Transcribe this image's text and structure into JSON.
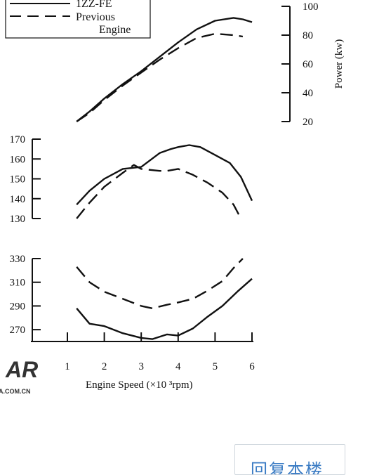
{
  "chart_data": {
    "type": "line",
    "x_axis": {
      "label": "Engine  Speed (×10 ³rpm)",
      "ticks": [
        1,
        2,
        3,
        4,
        5,
        6
      ],
      "range": [
        1,
        6
      ]
    },
    "legend": {
      "entries": [
        "1ZZ-FE",
        "Previous",
        "Engine"
      ],
      "placement": "top-left"
    },
    "panels": [
      {
        "id": "power",
        "ylabel": "Power (kw)",
        "y_axis_side": "right",
        "y_ticks": [
          20,
          40,
          60,
          80,
          100
        ],
        "ylim": [
          20,
          100
        ],
        "series": [
          {
            "name": "1ZZ-FE",
            "style": "solid",
            "x": [
              1.25,
              1.6,
              2,
              2.5,
              3,
              3.5,
              4,
              4.5,
              5,
              5.5,
              5.75,
              6
            ],
            "y": [
              20,
              27,
              36,
              46,
              55,
              65,
              75,
              84,
              90,
              92,
              91,
              89
            ]
          },
          {
            "name": "Previous Engine",
            "style": "dashed",
            "x": [
              1.25,
              1.6,
              2,
              2.5,
              3,
              3.5,
              4,
              4.5,
              5,
              5.5,
              5.75
            ],
            "y": [
              20,
              26,
              35,
              45,
              54,
              63,
              71,
              78,
              81,
              80,
              79
            ]
          }
        ]
      },
      {
        "id": "torque",
        "ylabel": "",
        "y_axis_side": "left",
        "y_ticks": [
          130,
          140,
          150,
          160,
          170
        ],
        "ylim": [
          130,
          170
        ],
        "series": [
          {
            "name": "1ZZ-FE",
            "style": "solid",
            "x": [
              1.25,
              1.6,
              2,
              2.5,
              3,
              3.5,
              3.8,
              4,
              4.3,
              4.6,
              5,
              5.4,
              5.7,
              6
            ],
            "y": [
              137,
              144,
              150,
              155,
              156,
              163,
              165,
              166,
              167,
              166,
              162,
              158,
              151,
              139
            ]
          },
          {
            "name": "Previous Engine",
            "style": "dashed",
            "x": [
              1.25,
              1.6,
              2,
              2.5,
              2.8,
              3,
              3.5,
              3.7,
              4,
              4.4,
              4.8,
              5.2,
              5.5,
              5.7
            ],
            "y": [
              130,
              138,
              146,
              153,
              157,
              155,
              154,
              154,
              155,
              152,
              148,
              143,
              137,
              130
            ]
          }
        ]
      },
      {
        "id": "bsfc",
        "ylabel": "",
        "y_axis_side": "left",
        "y_ticks": [
          270,
          290,
          310,
          330
        ],
        "ylim": [
          260,
          330
        ],
        "series": [
          {
            "name": "1ZZ-FE",
            "style": "solid",
            "x": [
              1.25,
              1.6,
              2,
              2.5,
              3,
              3.3,
              3.7,
              4,
              4.4,
              4.8,
              5.2,
              5.6,
              6
            ],
            "y": [
              288,
              275,
              273,
              267,
              263,
              262,
              266,
              265,
              271,
              281,
              290,
              302,
              313
            ]
          },
          {
            "name": "Previous Engine",
            "style": "dashed",
            "x": [
              1.25,
              1.6,
              2,
              2.5,
              3,
              3.3,
              3.7,
              4,
              4.4,
              4.8,
              5.2,
              5.5,
              5.75
            ],
            "y": [
              323,
              310,
              302,
              296,
              290,
              288,
              291,
              293,
              296,
              303,
              311,
              322,
              330
            ]
          }
        ]
      }
    ]
  },
  "watermark": {
    "logo_text": "AR",
    "small_text": "A.COM.CN"
  },
  "reply_button": {
    "label": "回复本楼"
  }
}
